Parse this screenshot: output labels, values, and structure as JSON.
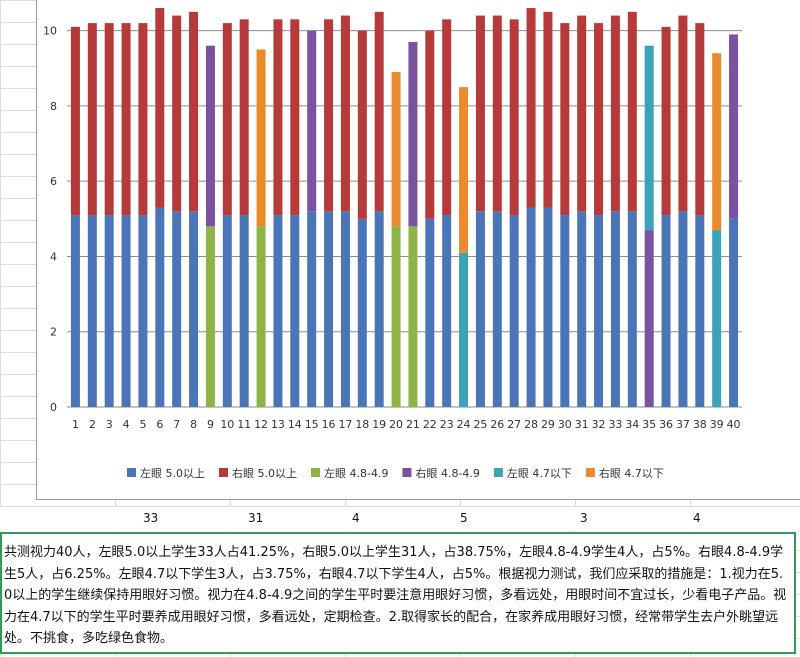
{
  "chart_data": {
    "type": "bar",
    "stacked": true,
    "categories": [
      "1",
      "2",
      "3",
      "4",
      "5",
      "6",
      "7",
      "8",
      "9",
      "10",
      "11",
      "12",
      "13",
      "14",
      "15",
      "16",
      "17",
      "18",
      "19",
      "20",
      "21",
      "22",
      "23",
      "24",
      "25",
      "26",
      "27",
      "28",
      "29",
      "30",
      "31",
      "32",
      "33",
      "34",
      "35",
      "36",
      "37",
      "38",
      "39",
      "40"
    ],
    "ylim": [
      0,
      11
    ],
    "yticks": [
      0,
      2,
      4,
      6,
      8,
      10
    ],
    "grid": true,
    "legend_position": "bottom",
    "series": [
      {
        "name": "左眼 5.0以上",
        "color": "#4a76b8",
        "values": [
          5.1,
          5.1,
          5.1,
          5.1,
          5.1,
          5.3,
          5.2,
          5.2,
          null,
          5.1,
          5.1,
          null,
          5.1,
          5.1,
          5.2,
          5.2,
          5.2,
          5.0,
          5.2,
          null,
          null,
          5.0,
          5.1,
          null,
          5.2,
          5.2,
          5.1,
          5.3,
          5.3,
          5.1,
          5.2,
          5.1,
          5.2,
          5.2,
          null,
          5.1,
          5.2,
          5.1,
          null,
          5.0
        ]
      },
      {
        "name": "右眼 5.0以上",
        "color": "#b63a3a",
        "values": [
          5.0,
          5.1,
          5.1,
          5.1,
          5.1,
          5.3,
          5.2,
          5.3,
          null,
          5.1,
          5.2,
          null,
          5.2,
          5.2,
          null,
          5.1,
          5.2,
          5.0,
          5.3,
          null,
          null,
          5.0,
          5.2,
          null,
          5.2,
          5.2,
          5.2,
          5.3,
          5.2,
          5.1,
          5.2,
          5.1,
          5.2,
          5.3,
          null,
          5.0,
          5.2,
          5.1,
          null,
          null
        ]
      },
      {
        "name": "左眼 4.8-4.9",
        "color": "#8fb347",
        "values": [
          null,
          null,
          null,
          null,
          null,
          null,
          null,
          null,
          4.8,
          null,
          null,
          4.8,
          null,
          null,
          null,
          null,
          null,
          null,
          null,
          4.8,
          4.8,
          null,
          null,
          null,
          null,
          null,
          null,
          null,
          null,
          null,
          null,
          null,
          null,
          null,
          null,
          null,
          null,
          null,
          null,
          null
        ]
      },
      {
        "name": "右眼 4.8-4.9",
        "color": "#7a53a0",
        "values": [
          null,
          null,
          null,
          null,
          null,
          null,
          null,
          null,
          4.8,
          null,
          null,
          null,
          null,
          null,
          4.8,
          null,
          null,
          null,
          null,
          null,
          4.9,
          null,
          null,
          null,
          null,
          null,
          null,
          null,
          null,
          null,
          null,
          null,
          null,
          null,
          4.7,
          null,
          null,
          null,
          null,
          4.9
        ]
      },
      {
        "name": "左眼 4.7以下",
        "color": "#3aa3b7",
        "values": [
          null,
          null,
          null,
          null,
          null,
          null,
          null,
          null,
          null,
          null,
          null,
          null,
          null,
          null,
          null,
          null,
          null,
          null,
          null,
          null,
          null,
          null,
          null,
          4.1,
          null,
          null,
          null,
          null,
          null,
          null,
          null,
          null,
          null,
          null,
          4.9,
          null,
          null,
          null,
          4.7,
          null
        ]
      },
      {
        "name": "右眼 4.7以下",
        "color": "#e98b2d",
        "values": [
          null,
          null,
          null,
          null,
          null,
          null,
          null,
          null,
          null,
          null,
          null,
          4.7,
          null,
          null,
          null,
          null,
          null,
          null,
          null,
          4.1,
          null,
          null,
          null,
          4.4,
          null,
          null,
          null,
          null,
          null,
          null,
          null,
          null,
          null,
          null,
          null,
          null,
          null,
          null,
          4.7,
          null
        ]
      }
    ]
  },
  "counts_row": [
    "33",
    "31",
    "4",
    "5",
    "3",
    "4"
  ],
  "summary": "共测视力40人，左眼5.0以上学生33人占41.25%，右眼5.0以上学生31人，占38.75%，左眼4.8-4.9学生4人，占5%。右眼4.8-4.9学生5人，占6.25%。左眼4.7以下学生3人，占3.75%，右眼4.7以下学生4人，占5%。根据视力测试，我们应采取的措施是：1.视力在5.0以上的学生继续保持用眼好习惯。视力在4.8-4.9之间的学生平时要注意用眼好习惯，多看远处，用眼时间不宜过长，少看电子产品。视力在4.7以下的学生平时要养成用眼好习惯，多看远处，定期检查。2.取得家长的配合，在家养成用眼好习惯，经常带学生去户外眺望远处。不挑食，多吃绿色食物。"
}
